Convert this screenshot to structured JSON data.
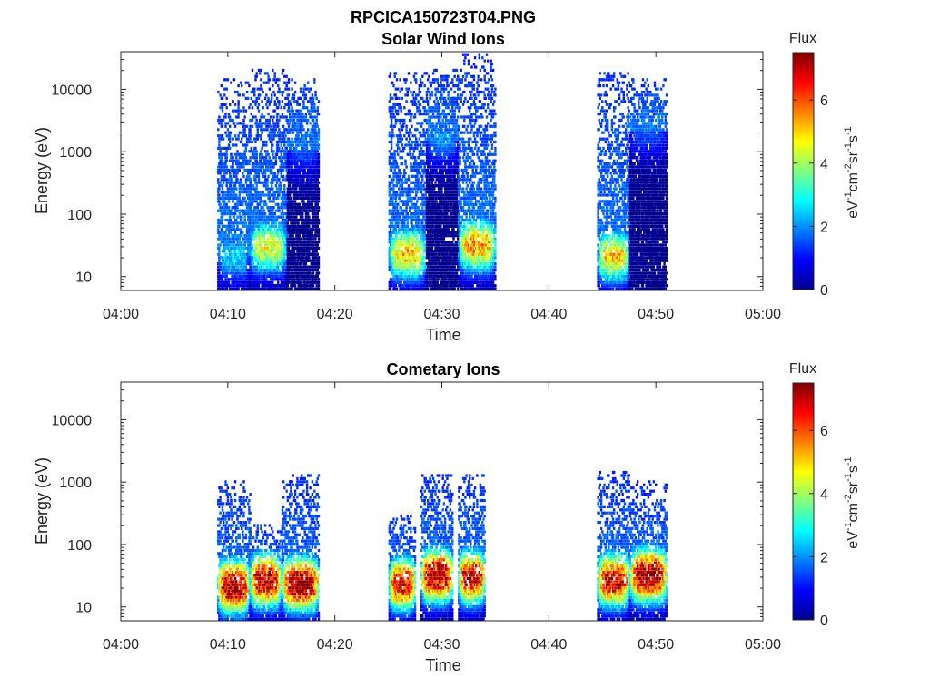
{
  "figure_title": "RPCICA150723T04.PNG",
  "colormap": [
    "#00008f",
    "#0000ff",
    "#0080ff",
    "#00ffff",
    "#80ff80",
    "#ffff00",
    "#ff8000",
    "#ff0000",
    "#800000"
  ],
  "chart_data": [
    {
      "type": "heatmap",
      "title": "Solar Wind Ions",
      "xlabel": "Time",
      "ylabel": "Energy (eV)",
      "x_ticks": [
        "04:00",
        "04:10",
        "04:20",
        "04:30",
        "04:40",
        "04:50",
        "05:00"
      ],
      "x_range": [
        "04:00",
        "05:00"
      ],
      "y_ticks": [
        "10",
        "100",
        "1000",
        "10000"
      ],
      "y_scale": "log",
      "y_range": [
        6,
        40000
      ],
      "colorbar": {
        "title": "Flux",
        "label": "eV-1cm-2sr-1s-1",
        "ticks": [
          "0",
          "2",
          "4",
          "6"
        ],
        "range": [
          0,
          7.5
        ]
      },
      "activity_windows": [
        {
          "start": "04:09",
          "end": "04:12",
          "peak_energy_eV": 20,
          "max_energy_eV": 15000,
          "peak_flux": 2.5
        },
        {
          "start": "04:12",
          "end": "04:15.5",
          "peak_energy_eV": 28,
          "max_energy_eV": 20000,
          "peak_flux": 4.5
        },
        {
          "start": "04:15.5",
          "end": "04:18.5",
          "peak_energy_eV": 1000,
          "max_energy_eV": 15000,
          "peak_flux": 1.5
        },
        {
          "start": "04:25",
          "end": "04:28.5",
          "peak_energy_eV": 22,
          "max_energy_eV": 18000,
          "peak_flux": 5
        },
        {
          "start": "04:28.5",
          "end": "04:31.5",
          "peak_energy_eV": 1500,
          "max_energy_eV": 20000,
          "peak_flux": 2
        },
        {
          "start": "04:31.5",
          "end": "04:35",
          "peak_energy_eV": 30,
          "max_energy_eV": 35000,
          "peak_flux": 5.5
        },
        {
          "start": "04:44.5",
          "end": "04:47.5",
          "peak_energy_eV": 20,
          "max_energy_eV": 18000,
          "peak_flux": 5
        },
        {
          "start": "04:47.5",
          "end": "04:51",
          "peak_energy_eV": 2000,
          "max_energy_eV": 15000,
          "peak_flux": 1.5
        }
      ]
    },
    {
      "type": "heatmap",
      "title": "Cometary Ions",
      "xlabel": "Time",
      "ylabel": "Energy (eV)",
      "x_ticks": [
        "04:00",
        "04:10",
        "04:20",
        "04:30",
        "04:40",
        "04:50",
        "05:00"
      ],
      "x_range": [
        "04:00",
        "05:00"
      ],
      "y_ticks": [
        "10",
        "100",
        "1000",
        "10000"
      ],
      "y_scale": "log",
      "y_range": [
        6,
        40000
      ],
      "colorbar": {
        "title": "Flux",
        "label": "eV-1cm-2sr-1s-1",
        "ticks": [
          "0",
          "2",
          "4",
          "6"
        ],
        "range": [
          0,
          7.5
        ]
      },
      "activity_windows": [
        {
          "start": "04:09",
          "end": "04:12",
          "peak_energy_eV": 20,
          "max_energy_eV": 1000,
          "peak_flux": 7.5
        },
        {
          "start": "04:12",
          "end": "04:15",
          "peak_energy_eV": 25,
          "max_energy_eV": 200,
          "peak_flux": 7.2
        },
        {
          "start": "04:15",
          "end": "04:18.5",
          "peak_energy_eV": 22,
          "max_energy_eV": 1300,
          "peak_flux": 7.5
        },
        {
          "start": "04:25",
          "end": "04:27.5",
          "peak_energy_eV": 22,
          "max_energy_eV": 300,
          "peak_flux": 6.8
        },
        {
          "start": "04:28",
          "end": "04:31",
          "peak_energy_eV": 30,
          "max_energy_eV": 1200,
          "peak_flux": 7.5
        },
        {
          "start": "04:31.5",
          "end": "04:34",
          "peak_energy_eV": 28,
          "max_energy_eV": 1200,
          "peak_flux": 7
        },
        {
          "start": "04:44.5",
          "end": "04:47.5",
          "peak_energy_eV": 25,
          "max_energy_eV": 1400,
          "peak_flux": 7
        },
        {
          "start": "04:47.5",
          "end": "04:51",
          "peak_energy_eV": 30,
          "max_energy_eV": 1000,
          "peak_flux": 7.6
        }
      ]
    }
  ]
}
